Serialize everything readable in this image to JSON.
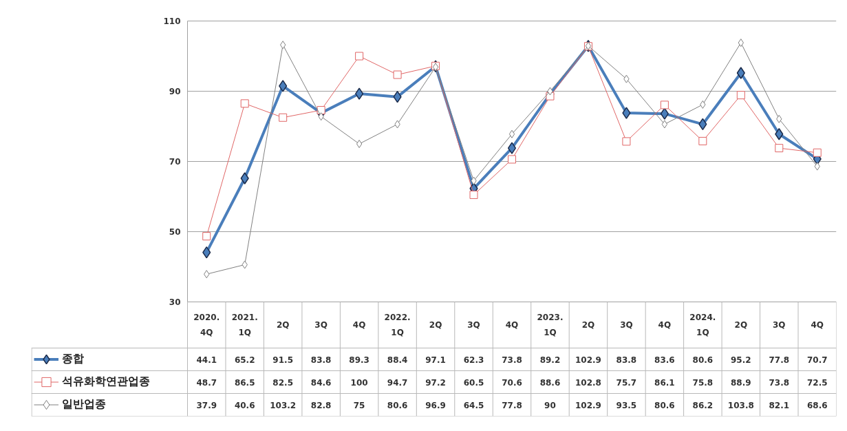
{
  "chart_data": {
    "type": "line",
    "categories": [
      "2020.\n4Q",
      "2021.\n1Q",
      "2Q",
      "3Q",
      "4Q",
      "2022.\n1Q",
      "2Q",
      "3Q",
      "4Q",
      "2023.\n1Q",
      "2Q",
      "3Q",
      "4Q",
      "2024.\n1Q",
      "2Q",
      "3Q",
      "4Q"
    ],
    "series": [
      {
        "name": "종합",
        "color": "#4a7ebb",
        "marker": "diamond",
        "values": [
          44.1,
          65.2,
          91.5,
          83.8,
          89.3,
          88.4,
          97.1,
          62.3,
          73.8,
          89.2,
          102.9,
          83.8,
          83.6,
          80.6,
          95.2,
          77.8,
          70.7
        ]
      },
      {
        "name": "석유화학연관업종",
        "color": "#e06666",
        "marker": "square",
        "values": [
          48.7,
          86.5,
          82.5,
          84.6,
          100,
          94.7,
          97.2,
          60.5,
          70.6,
          88.6,
          102.8,
          75.7,
          86.1,
          75.8,
          88.9,
          73.8,
          72.5
        ]
      },
      {
        "name": "일반업종",
        "color": "#808080",
        "marker": "diamond",
        "values": [
          37.9,
          40.6,
          103.2,
          82.8,
          75,
          80.6,
          96.9,
          64.5,
          77.8,
          90,
          102.9,
          93.5,
          80.6,
          86.2,
          103.8,
          82.1,
          68.6
        ]
      }
    ],
    "ylim": [
      30,
      110
    ],
    "yticks": [
      30,
      50,
      70,
      90,
      110
    ],
    "grid": "y",
    "legend": "bottom",
    "data_labels": true,
    "line_style": "solid"
  }
}
